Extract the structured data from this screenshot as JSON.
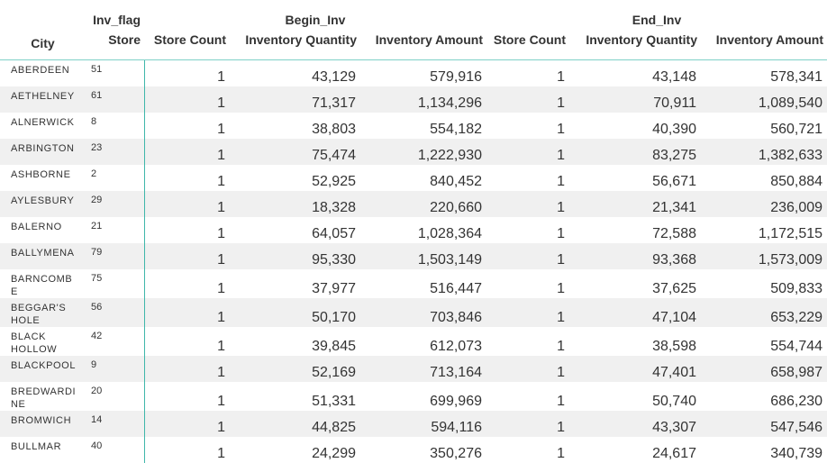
{
  "header": {
    "city": "City",
    "inv_flag": "Inv_flag",
    "store": "Store",
    "groups": [
      "Begin_Inv",
      "End_Inv"
    ],
    "columns": [
      "Store Count",
      "Inventory Quantity",
      "Inventory Amount"
    ]
  },
  "table": {
    "rows": [
      [
        "ABERDEEN",
        "51",
        "1",
        "43,129",
        "579,916",
        "1",
        "43,148",
        "578,341"
      ],
      [
        "AETHELNEY",
        "61",
        "1",
        "71,317",
        "1,134,296",
        "1",
        "70,911",
        "1,089,540"
      ],
      [
        "ALNERWICK",
        "8",
        "1",
        "38,803",
        "554,182",
        "1",
        "40,390",
        "560,721"
      ],
      [
        "ARBINGTON",
        "23",
        "1",
        "75,474",
        "1,222,930",
        "1",
        "83,275",
        "1,382,633"
      ],
      [
        "ASHBORNE",
        "2",
        "1",
        "52,925",
        "840,452",
        "1",
        "56,671",
        "850,884"
      ],
      [
        "AYLESBURY",
        "29",
        "1",
        "18,328",
        "220,660",
        "1",
        "21,341",
        "236,009"
      ],
      [
        "BALERNO",
        "21",
        "1",
        "64,057",
        "1,028,364",
        "1",
        "72,588",
        "1,172,515"
      ],
      [
        "BALLYMENA",
        "79",
        "1",
        "95,330",
        "1,503,149",
        "1",
        "93,368",
        "1,573,009"
      ],
      [
        "BARNCOMBE",
        "75",
        "1",
        "37,977",
        "516,447",
        "1",
        "37,625",
        "509,833"
      ],
      [
        "BEGGAR'S HOLE",
        "56",
        "1",
        "50,170",
        "703,846",
        "1",
        "47,104",
        "653,229"
      ],
      [
        "BLACK HOLLOW",
        "42",
        "1",
        "39,845",
        "612,073",
        "1",
        "38,598",
        "554,744"
      ],
      [
        "BLACKPOOL",
        "9",
        "1",
        "52,169",
        "713,164",
        "1",
        "47,401",
        "658,987"
      ],
      [
        "BREDWARDINE",
        "20",
        "1",
        "51,331",
        "699,969",
        "1",
        "50,740",
        "686,230"
      ],
      [
        "BROMWICH",
        "14",
        "1",
        "44,825",
        "594,116",
        "1",
        "43,307",
        "547,546"
      ],
      [
        "BULLMAR",
        "40",
        "1",
        "24,299",
        "350,276",
        "1",
        "24,617",
        "340,739"
      ]
    ]
  }
}
